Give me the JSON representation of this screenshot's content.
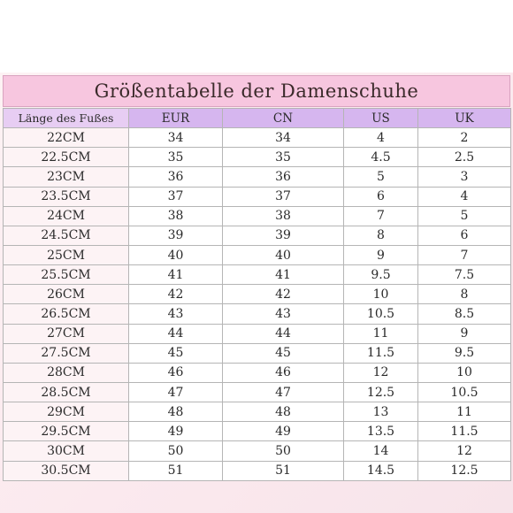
{
  "title": "Größentabelle der Damenschuhe",
  "headers": [
    "Länge des Fußes",
    "EUR",
    "CN",
    "US",
    "UK"
  ],
  "rows": [
    [
      "22CM",
      "34",
      "34",
      "4",
      "2"
    ],
    [
      "22.5CM",
      "35",
      "35",
      "4.5",
      "2.5"
    ],
    [
      "23CM",
      "36",
      "36",
      "5",
      "3"
    ],
    [
      "23.5CM",
      "37",
      "37",
      "6",
      "4"
    ],
    [
      "24CM",
      "38",
      "38",
      "7",
      "5"
    ],
    [
      "24.5CM",
      "39",
      "39",
      "8",
      "6"
    ],
    [
      "25CM",
      "40",
      "40",
      "9",
      "7"
    ],
    [
      "25.5CM",
      "41",
      "41",
      "9.5",
      "7.5"
    ],
    [
      "26CM",
      "42",
      "42",
      "10",
      "8"
    ],
    [
      "26.5CM",
      "43",
      "43",
      "10.5",
      "8.5"
    ],
    [
      "27CM",
      "44",
      "44",
      "11",
      "9"
    ],
    [
      "27.5CM",
      "45",
      "45",
      "11.5",
      "9.5"
    ],
    [
      "28CM",
      "46",
      "46",
      "12",
      "10"
    ],
    [
      "28.5CM",
      "47",
      "47",
      "12.5",
      "10.5"
    ],
    [
      "29CM",
      "48",
      "48",
      "13",
      "11"
    ],
    [
      "29.5CM",
      "49",
      "49",
      "13.5",
      "11.5"
    ],
    [
      "30CM",
      "50",
      "50",
      "14",
      "12"
    ],
    [
      "30.5CM",
      "51",
      "51",
      "14.5",
      "12.5"
    ]
  ],
  "colors": {
    "title_bg": "#f7c6df",
    "header_bg": "#d6b6ef",
    "sheet_bg": "#fbe9ee"
  }
}
